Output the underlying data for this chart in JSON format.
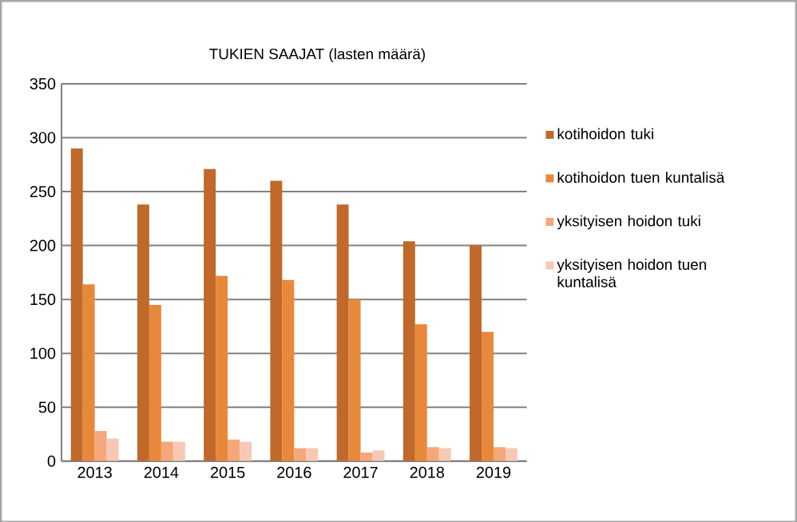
{
  "chart_data": {
    "type": "bar",
    "title": "TUKIEN SAAJAT  (lasten määrä)",
    "categories": [
      "2013",
      "2014",
      "2015",
      "2016",
      "2017",
      "2018",
      "2019"
    ],
    "series": [
      {
        "name": "kotihoidon tuki",
        "color": "#c0692a",
        "values": [
          290,
          238,
          271,
          260,
          238,
          204,
          200
        ]
      },
      {
        "name": "kotihoidon tuen kuntalisä",
        "color": "#e8883a",
        "values": [
          164,
          145,
          172,
          168,
          150,
          127,
          120
        ]
      },
      {
        "name": "yksityisen hoidon tuki",
        "color": "#f4a77a",
        "values": [
          28,
          18,
          20,
          12,
          8,
          13,
          13
        ]
      },
      {
        "name": "yksityisen hoidon tuen kuntalisä",
        "color": "#f8c8b4",
        "values": [
          21,
          18,
          18,
          12,
          10,
          12,
          12
        ]
      }
    ],
    "ylim": [
      0,
      350
    ],
    "yticks": [
      0,
      50,
      100,
      150,
      200,
      250,
      300,
      350
    ],
    "grid": "y",
    "legend": "right"
  }
}
